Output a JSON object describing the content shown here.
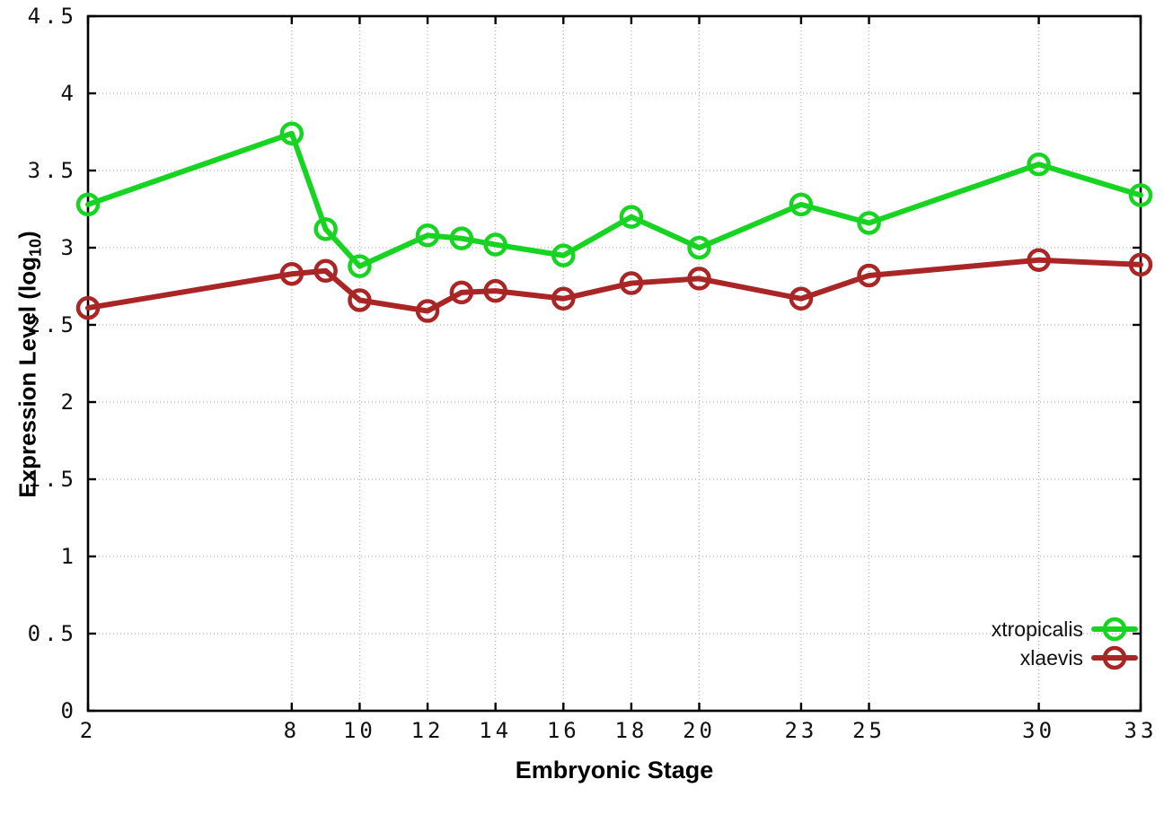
{
  "chart_data": {
    "type": "line",
    "title": "",
    "xlabel": "Embryonic Stage",
    "ylabel": {
      "text": "Expression Level (log10)",
      "prefix": "Expression Level (log",
      "subscript": "10",
      "suffix": ")"
    },
    "xlim": [
      2,
      33
    ],
    "ylim": [
      0,
      4.5
    ],
    "xticks": [
      2,
      8,
      10,
      12,
      14,
      16,
      18,
      20,
      23,
      25,
      30,
      33
    ],
    "yticks": [
      0,
      0.5,
      1,
      1.5,
      2,
      2.5,
      3,
      3.5,
      4,
      4.5
    ],
    "grid": true,
    "legend_position": "bottom-right",
    "x": [
      2,
      8,
      9,
      10,
      12,
      13,
      14,
      16,
      18,
      20,
      23,
      25,
      30,
      33
    ],
    "series": [
      {
        "name": "xtropicalis",
        "color": "#18d422",
        "marker": "open-circle",
        "values": [
          3.28,
          3.74,
          3.12,
          2.88,
          3.08,
          3.06,
          3.02,
          2.95,
          3.2,
          3.0,
          3.28,
          3.16,
          3.54,
          3.34
        ]
      },
      {
        "name": "xlaevis",
        "color": "#aa2525",
        "marker": "open-circle",
        "values": [
          2.61,
          2.83,
          2.85,
          2.66,
          2.59,
          2.71,
          2.72,
          2.67,
          2.77,
          2.8,
          2.67,
          2.82,
          2.92,
          2.89
        ]
      }
    ]
  },
  "colors": {
    "background": "#ffffff",
    "grid": "#b4b4b4",
    "axis": "#000000",
    "tick_label": "#111111"
  }
}
